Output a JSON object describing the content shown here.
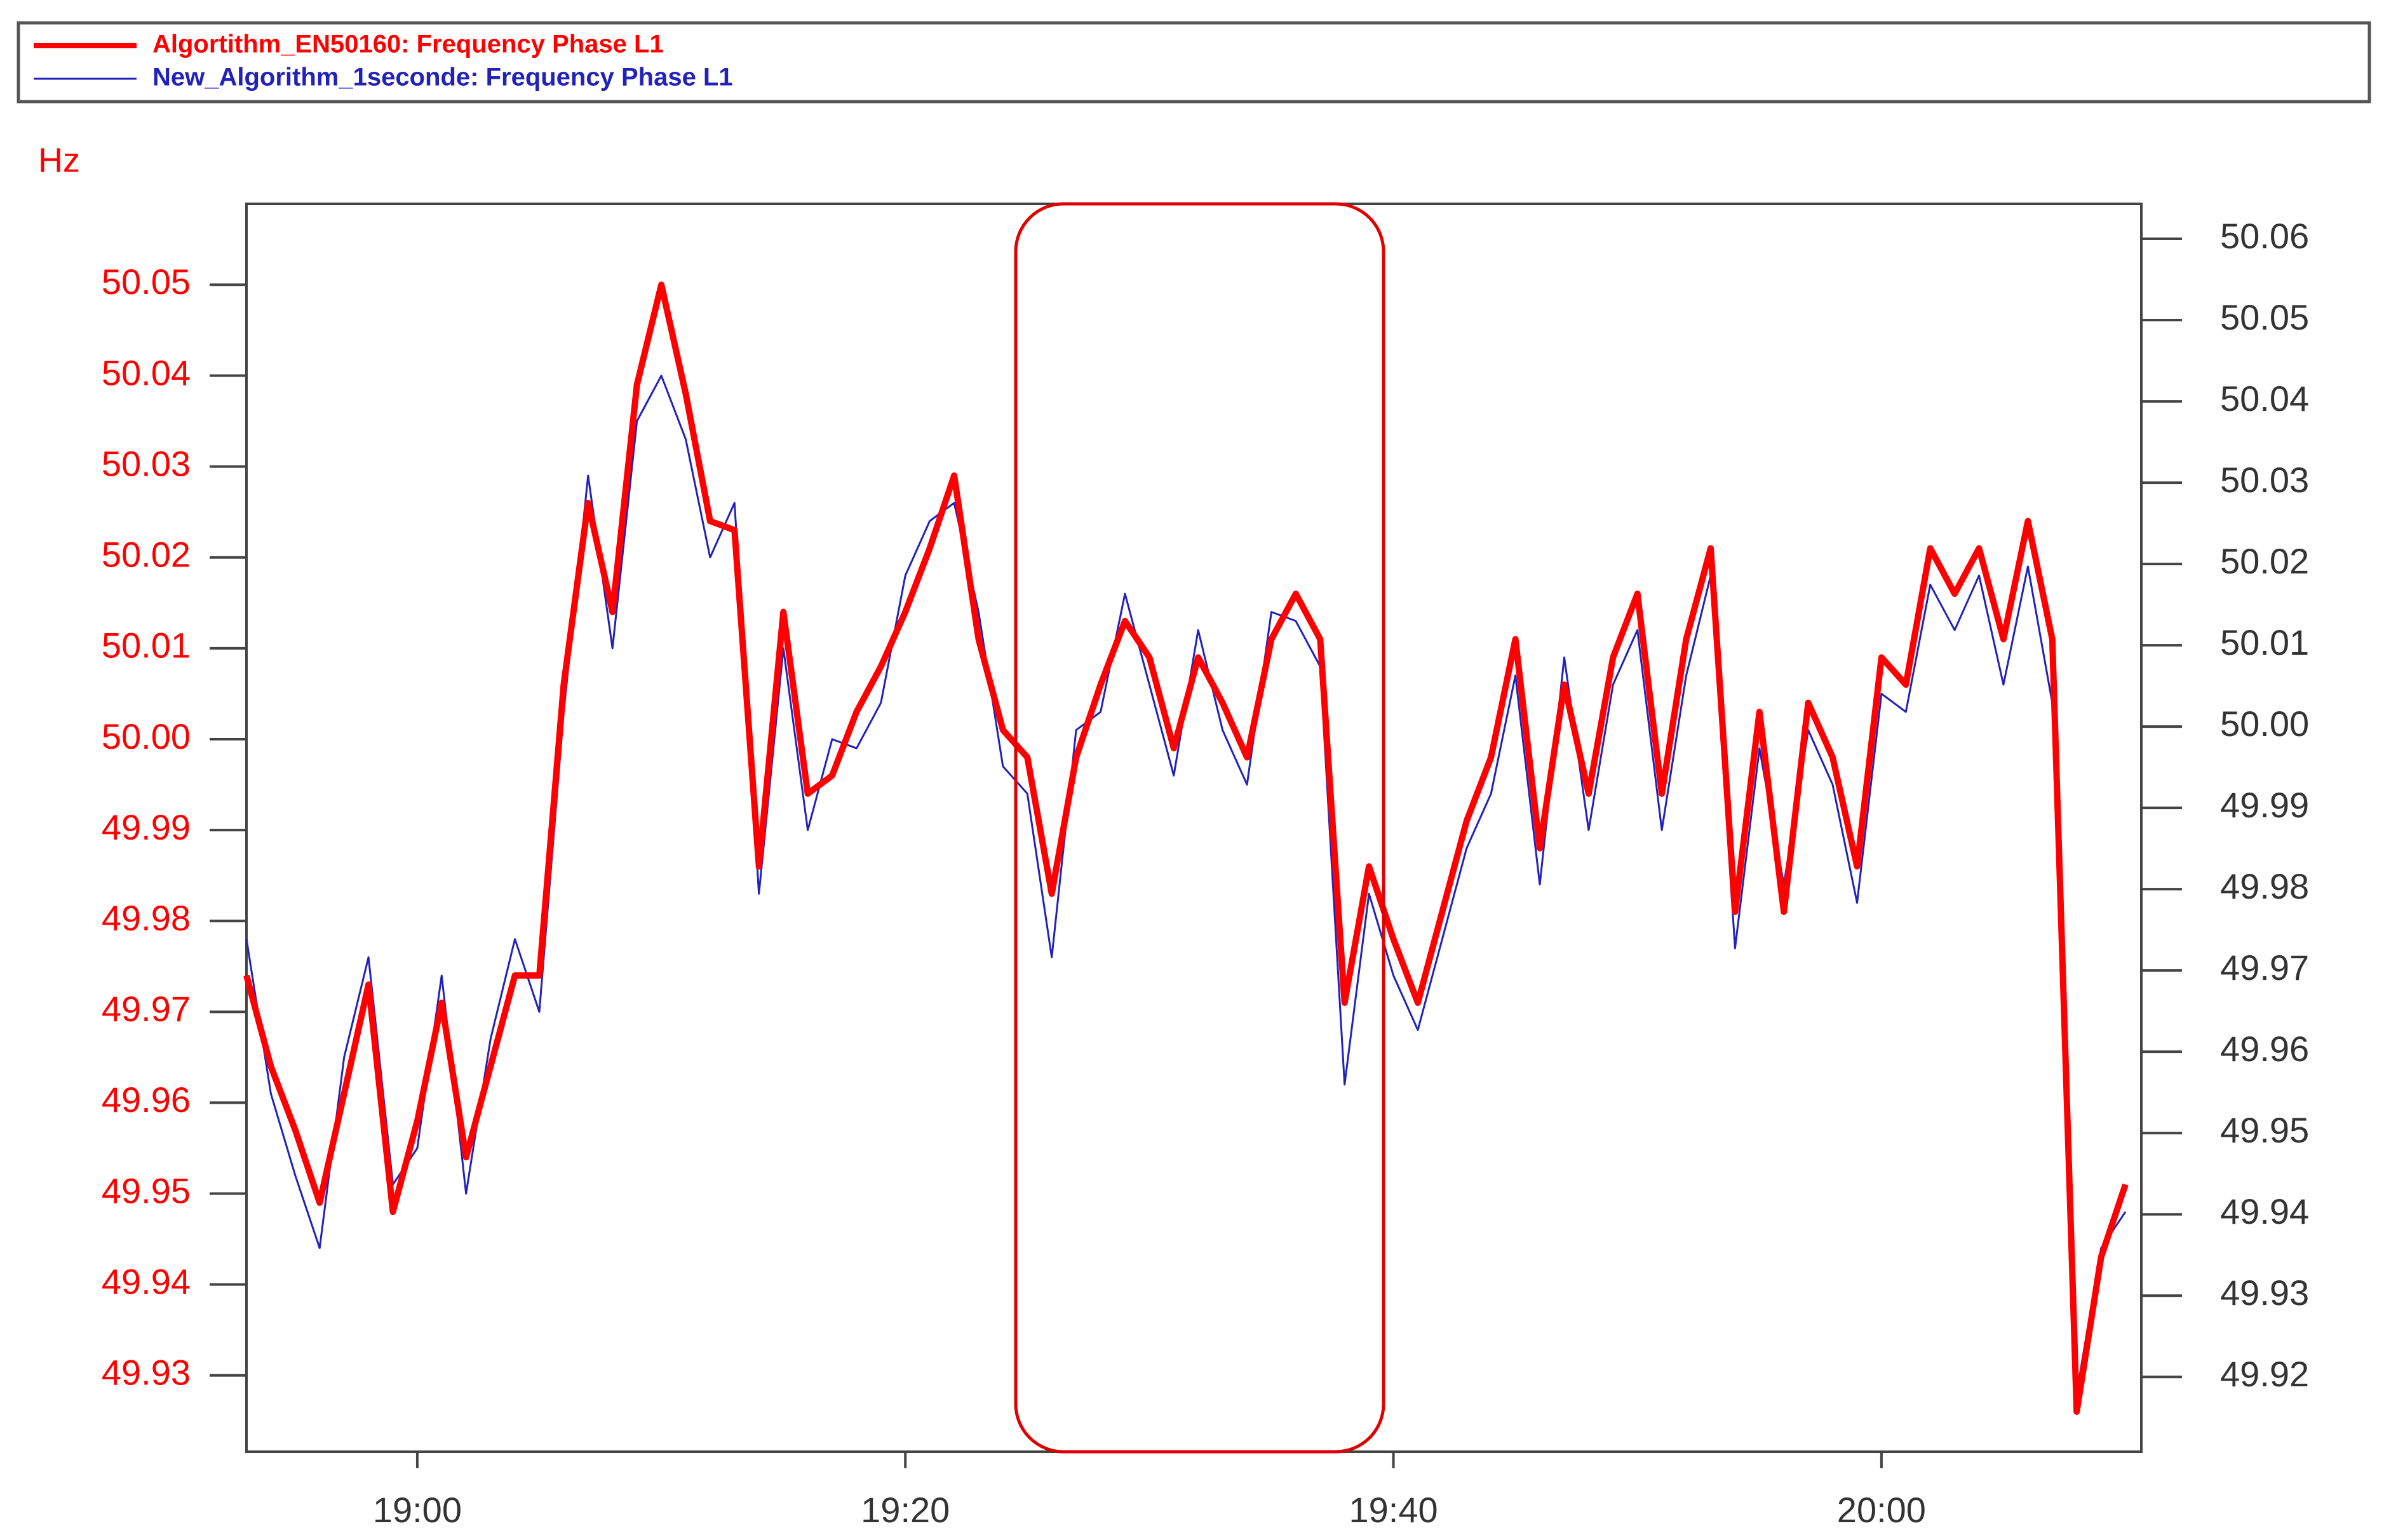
{
  "chart_data": {
    "type": "line",
    "y_label": "Hz",
    "x": [
      1133,
      1134,
      1135,
      1136,
      1137,
      1138,
      1139,
      1140,
      1141,
      1142,
      1143,
      1144,
      1145,
      1146,
      1147,
      1148,
      1149,
      1150,
      1151,
      1152,
      1153,
      1154,
      1155,
      1156,
      1157,
      1158,
      1159,
      1160,
      1161,
      1162,
      1163,
      1164,
      1165,
      1166,
      1167,
      1168,
      1169,
      1170,
      1171,
      1172,
      1173,
      1174,
      1175,
      1176,
      1177,
      1178,
      1179,
      1180,
      1181,
      1182,
      1183,
      1184,
      1185,
      1186,
      1187,
      1188,
      1189,
      1190,
      1191,
      1192,
      1193,
      1194,
      1195,
      1196,
      1197,
      1198,
      1199,
      1200,
      1201,
      1202,
      1203,
      1204,
      1205,
      1206,
      1207,
      1208,
      1209,
      1210
    ],
    "xlim": [
      1133,
      1210.65
    ],
    "xticks": [
      {
        "value": 1140,
        "label": "19:00"
      },
      {
        "value": 1160,
        "label": "19:20"
      },
      {
        "value": 1180,
        "label": "19:40"
      },
      {
        "value": 1200,
        "label": "20:00"
      }
    ],
    "ylim": [
      49.9216,
      50.0589
    ],
    "yticks": [
      50.05,
      50.04,
      50.03,
      50.02,
      50.01,
      {
        "value": 50,
        "label": "50.00"
      },
      49.99,
      49.98,
      49.97,
      49.96,
      49.95,
      49.94,
      49.93
    ],
    "y2lim": [
      49.9108,
      50.0643
    ],
    "y2ticks": [
      50.06,
      50.05,
      50.04,
      50.03,
      50.02,
      50.01,
      {
        "value": 50,
        "label": "50.00"
      },
      49.99,
      49.98,
      49.97,
      49.96,
      49.95,
      49.94,
      49.93,
      49.92
    ],
    "series": [
      {
        "name": "New_Algorithm_1seconde: Frequency Phase L1",
        "color": "#2222bb",
        "values": [
          49.978,
          49.961,
          49.952,
          49.944,
          49.965,
          49.976,
          49.951,
          49.955,
          49.974,
          49.95,
          49.967,
          49.978,
          49.97,
          50.003,
          50.029,
          50.01,
          50.035,
          50.04,
          50.033,
          50.02,
          50.026,
          49.983,
          50.01,
          49.99,
          50.0,
          49.999,
          50.004,
          50.018,
          50.024,
          50.026,
          50.014,
          49.997,
          49.994,
          49.976,
          50.001,
          50.003,
          50.016,
          50.006,
          49.996,
          50.012,
          50.001,
          49.995,
          50.014,
          50.013,
          50.008,
          49.962,
          49.983,
          49.974,
          49.968,
          49.978,
          49.988,
          49.994,
          50.007,
          49.984,
          50.009,
          49.99,
          50.006,
          50.012,
          49.99,
          50.007,
          50.018,
          49.977,
          49.999,
          49.984,
          50.001,
          49.995,
          49.982,
          50.005,
          50.003,
          50.017,
          50.012,
          50.018,
          50.006,
          50.019,
          50.004,
          49.928,
          49.944,
          49.948
        ]
      },
      {
        "name": "Algortithm_EN50160: Frequency Phase L1",
        "color": "#ff0000",
        "values": [
          49.974,
          49.964,
          49.957,
          49.949,
          49.961,
          49.973,
          49.948,
          49.958,
          49.971,
          49.954,
          49.964,
          49.974,
          49.974,
          50.006,
          50.026,
          50.014,
          50.039,
          50.05,
          50.038,
          50.024,
          50.023,
          49.986,
          50.014,
          49.994,
          49.996,
          50.003,
          50.008,
          50.014,
          50.021,
          50.029,
          50.011,
          50.001,
          49.998,
          49.983,
          49.998,
          50.006,
          50.013,
          50.009,
          49.999,
          50.009,
          50.004,
          49.998,
          50.011,
          50.016,
          50.011,
          49.971,
          49.986,
          49.978,
          49.971,
          49.981,
          49.991,
          49.998,
          50.011,
          49.988,
          50.006,
          49.994,
          50.009,
          50.016,
          49.994,
          50.011,
          50.021,
          49.981,
          50.003,
          49.981,
          50.004,
          49.998,
          49.986,
          50.009,
          50.006,
          50.021,
          50.016,
          50.021,
          50.011,
          50.024,
          50.011,
          49.926,
          49.943,
          49.951
        ]
      }
    ],
    "legend": "top"
  }
}
